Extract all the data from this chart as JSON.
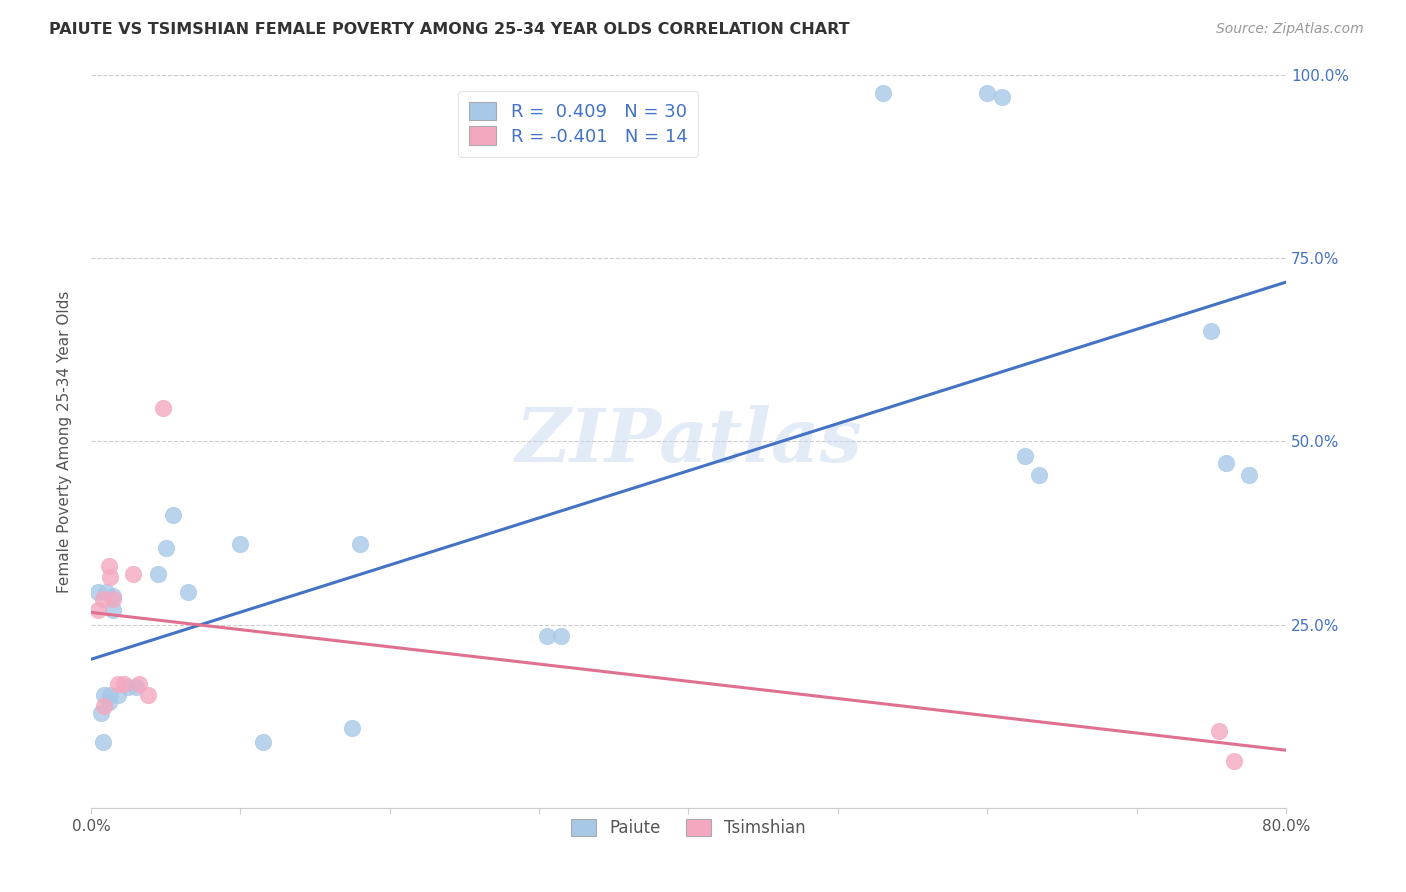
{
  "title": "PAIUTE VS TSIMSHIAN FEMALE POVERTY AMONG 25-34 YEAR OLDS CORRELATION CHART",
  "source": "Source: ZipAtlas.com",
  "ylabel": "Female Poverty Among 25-34 Year Olds",
  "xlim": [
    0.0,
    0.8
  ],
  "ylim": [
    0.0,
    1.0
  ],
  "xticks": [
    0.0,
    0.1,
    0.2,
    0.3,
    0.4,
    0.5,
    0.6,
    0.7,
    0.8
  ],
  "xticklabels": [
    "0.0%",
    "",
    "",
    "",
    "",
    "",
    "",
    "",
    "80.0%"
  ],
  "yticks": [
    0.0,
    0.25,
    0.5,
    0.75,
    1.0
  ],
  "yticklabels_right": [
    "",
    "25.0%",
    "50.0%",
    "75.0%",
    "100.0%"
  ],
  "paiute_color": "#A8C8E8",
  "tsimshian_color": "#F4A8C0",
  "paiute_line_color": "#4472C4",
  "tsimshian_line_color": "#E07090",
  "legend_text_color": "#4472C4",
  "watermark": "ZIPatlas",
  "paiute_R": 0.409,
  "paiute_N": 30,
  "tsimshian_R": -0.401,
  "tsimshian_N": 14,
  "paiute_x": [
    0.005,
    0.007,
    0.008,
    0.009,
    0.01,
    0.012,
    0.013,
    0.015,
    0.015,
    0.018,
    0.025,
    0.03,
    0.045,
    0.05,
    0.055,
    0.065,
    0.1,
    0.115,
    0.175,
    0.18,
    0.305,
    0.315,
    0.53,
    0.6,
    0.61,
    0.625,
    0.635,
    0.75,
    0.76,
    0.775
  ],
  "paiute_y": [
    0.295,
    0.13,
    0.09,
    0.155,
    0.295,
    0.145,
    0.155,
    0.29,
    0.27,
    0.155,
    0.165,
    0.165,
    0.32,
    0.355,
    0.4,
    0.295,
    0.36,
    0.09,
    0.11,
    0.36,
    0.235,
    0.235,
    0.975,
    0.975,
    0.97,
    0.48,
    0.455,
    0.65,
    0.47,
    0.455
  ],
  "tsimshian_x": [
    0.005,
    0.008,
    0.009,
    0.012,
    0.013,
    0.015,
    0.018,
    0.022,
    0.028,
    0.032,
    0.038,
    0.048,
    0.755,
    0.765
  ],
  "tsimshian_y": [
    0.27,
    0.285,
    0.14,
    0.33,
    0.315,
    0.285,
    0.17,
    0.17,
    0.32,
    0.17,
    0.155,
    0.545,
    0.105,
    0.065
  ],
  "background_color": "#FFFFFF",
  "grid_color": "#CCCCCC"
}
